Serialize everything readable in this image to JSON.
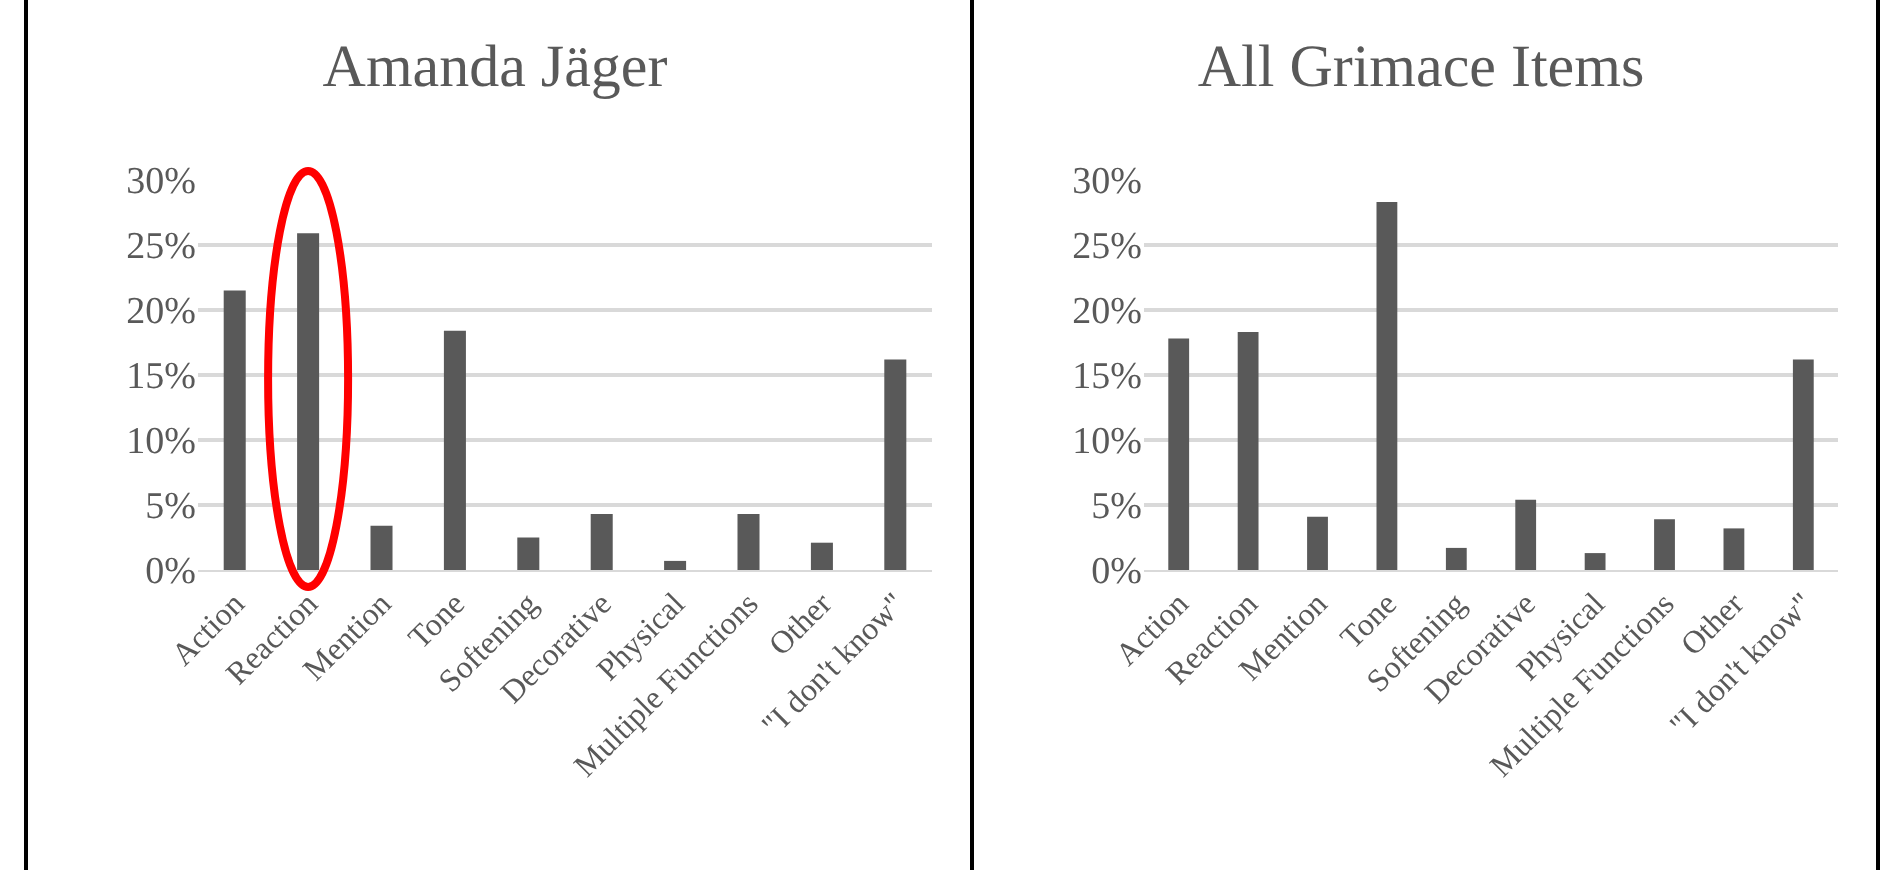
{
  "chart_data": [
    {
      "type": "bar",
      "title": "Amanda Jäger",
      "categories": [
        "Action",
        "Reaction",
        "Mention",
        "Tone",
        "Softening",
        "Decorative",
        "Physical",
        "Multiple Functions",
        "Other",
        "\"I don't know\""
      ],
      "values": [
        21.5,
        25.9,
        3.4,
        18.4,
        2.5,
        4.3,
        0.7,
        4.3,
        2.1,
        16.2
      ],
      "color": "#595959",
      "ylim": [
        0,
        30
      ],
      "yticks": [
        {
          "value": 0,
          "label": "0%"
        },
        {
          "value": 5,
          "label": "5%"
        },
        {
          "value": 10,
          "label": "10%"
        },
        {
          "value": 15,
          "label": "15%"
        },
        {
          "value": 20,
          "label": "20%"
        },
        {
          "value": 25,
          "label": "25%"
        },
        {
          "value": 30,
          "label": "30%"
        }
      ],
      "grid": "y"
    },
    {
      "type": "bar",
      "title": "All Grimace Items",
      "categories": [
        "Action",
        "Reaction",
        "Mention",
        "Tone",
        "Softening",
        "Decorative",
        "Physical",
        "Multiple Functions",
        "Other",
        "\"I don't know\""
      ],
      "values": [
        17.8,
        18.3,
        4.1,
        28.3,
        1.7,
        5.4,
        1.3,
        3.9,
        3.2,
        16.2
      ],
      "color": "#595959",
      "ylim": [
        0,
        30
      ],
      "yticks": [
        {
          "value": 0,
          "label": "0%"
        },
        {
          "value": 5,
          "label": "5%"
        },
        {
          "value": 10,
          "label": "10%"
        },
        {
          "value": 15,
          "label": "15%"
        },
        {
          "value": 20,
          "label": "20%"
        },
        {
          "value": 25,
          "label": "25%"
        },
        {
          "value": 30,
          "label": "30%"
        }
      ],
      "grid": "y"
    }
  ]
}
